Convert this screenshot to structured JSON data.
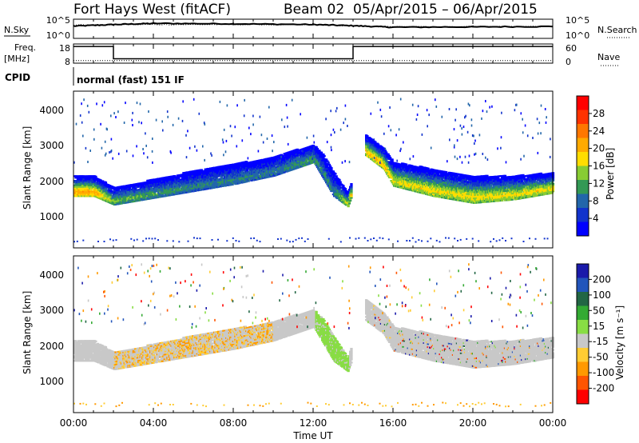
{
  "header": {
    "radar": "Fort Hays West (fitACF)",
    "beam": "Beam 02",
    "date_range": "05/Apr/2015 – 06/Apr/2015"
  },
  "side_labels": {
    "nsky": "N.Sky",
    "nsearch": "N.Search",
    "freq_line1": "Freq.",
    "freq_line2": "[MHz]",
    "nave": "Nave",
    "cpid": "CPID",
    "cpid_value": "normal (fast) 151 IF"
  },
  "top_axes": {
    "noise_ticks_left": [
      "10^5",
      "10^0"
    ],
    "noise_ticks_right": [
      "10^5",
      "10^0"
    ],
    "freq_ticks_left": [
      "18",
      "8"
    ],
    "freq_ticks_right": [
      "60",
      "0"
    ]
  },
  "colorbars": {
    "power": {
      "label": "Power [dB]",
      "ticks": [
        "28",
        "24",
        "20",
        "16",
        "12",
        "8",
        "4"
      ],
      "colors": [
        "#ff0000",
        "#ff3300",
        "#ff7700",
        "#ffaa00",
        "#ffdd00",
        "#88cc33",
        "#339955",
        "#2266aa",
        "#1133cc",
        "#0000ff"
      ]
    },
    "velocity": {
      "label": "Velocity [m s⁻¹]",
      "ticks": [
        "200",
        "100",
        "50",
        "15",
        "-15",
        "-50",
        "-100",
        "-200"
      ],
      "colors": [
        "#1a1aaa",
        "#2255bb",
        "#226644",
        "#33aa33",
        "#88dd44",
        "#c8c8c8",
        "#ffcc33",
        "#ff9900",
        "#ff5500",
        "#ff0000"
      ]
    }
  },
  "chart_data": [
    {
      "type": "line",
      "name": "noise",
      "series": [
        {
          "name": "N.Sky",
          "x": [
            "00:00",
            "02:00",
            "04:00",
            "08:00",
            "12:00",
            "14:00",
            "16:00",
            "20:00",
            "24:00"
          ],
          "values": [
            3.2,
            3.6,
            3.9,
            3.8,
            3.6,
            3.3,
            2.9,
            3.0,
            3.1
          ]
        },
        {
          "name": "N.Search",
          "x": [
            "00:00",
            "04:00",
            "08:00",
            "12:00",
            "16:00",
            "20:00",
            "24:00"
          ],
          "values": [
            3.5,
            3.6,
            3.6,
            3.5,
            3.0,
            3.1,
            3.1
          ]
        }
      ]
    },
    {
      "type": "line",
      "name": "frequency",
      "series": [
        {
          "name": "Freq.",
          "x": [
            "00:00",
            "02:00",
            "02:00",
            "14:00",
            "14:00",
            "24:00"
          ],
          "values": [
            17.5,
            17.5,
            10.5,
            10.5,
            17.5,
            17.5
          ]
        },
        {
          "name": "Nave",
          "x": [
            "00:00",
            "24:00"
          ],
          "values": [
            9,
            9
          ]
        }
      ]
    },
    {
      "type": "heatmap",
      "name": "power",
      "xlabel": "",
      "ylabel": "Slant Range [km]",
      "xlim": [
        "00:00",
        "24:00"
      ],
      "ylim": [
        0,
        4600
      ],
      "y_ticks": [
        "4000",
        "3000",
        "2000",
        "1000"
      ],
      "x_ticks": [
        "00:00",
        "04:00",
        "08:00",
        "12:00",
        "16:00",
        "20:00",
        "00:00"
      ],
      "band": {
        "time_h": [
          0,
          1,
          2,
          4,
          6,
          8,
          10,
          11,
          12,
          12.5,
          13,
          13.7,
          14.6,
          15.5,
          16,
          18,
          20,
          22,
          24
        ],
        "lower_km": [
          1500,
          1500,
          1250,
          1450,
          1650,
          1850,
          2100,
          2300,
          2500,
          2000,
          1500,
          1200,
          2700,
          2300,
          1800,
          1500,
          1300,
          1400,
          1600
        ],
        "upper_km": [
          2100,
          2100,
          1750,
          2000,
          2250,
          2450,
          2650,
          2850,
          3000,
          2700,
          2200,
          1600,
          3300,
          2900,
          2500,
          2300,
          2100,
          2100,
          2200
        ],
        "peak_db": [
          22,
          22,
          14,
          12,
          10,
          10,
          10,
          11,
          12,
          10,
          10,
          18,
          20,
          20,
          18,
          18,
          18,
          18,
          18
        ]
      }
    },
    {
      "type": "heatmap",
      "name": "velocity",
      "xlabel": "Time UT",
      "ylabel": "Slant Range [km]",
      "xlim": [
        "00:00",
        "24:00"
      ],
      "ylim": [
        0,
        4600
      ],
      "y_ticks": [
        "4000",
        "3000",
        "2000",
        "1000"
      ],
      "x_ticks": [
        "00:00",
        "04:00",
        "08:00",
        "12:00",
        "16:00",
        "20:00",
        "00:00"
      ]
    }
  ]
}
